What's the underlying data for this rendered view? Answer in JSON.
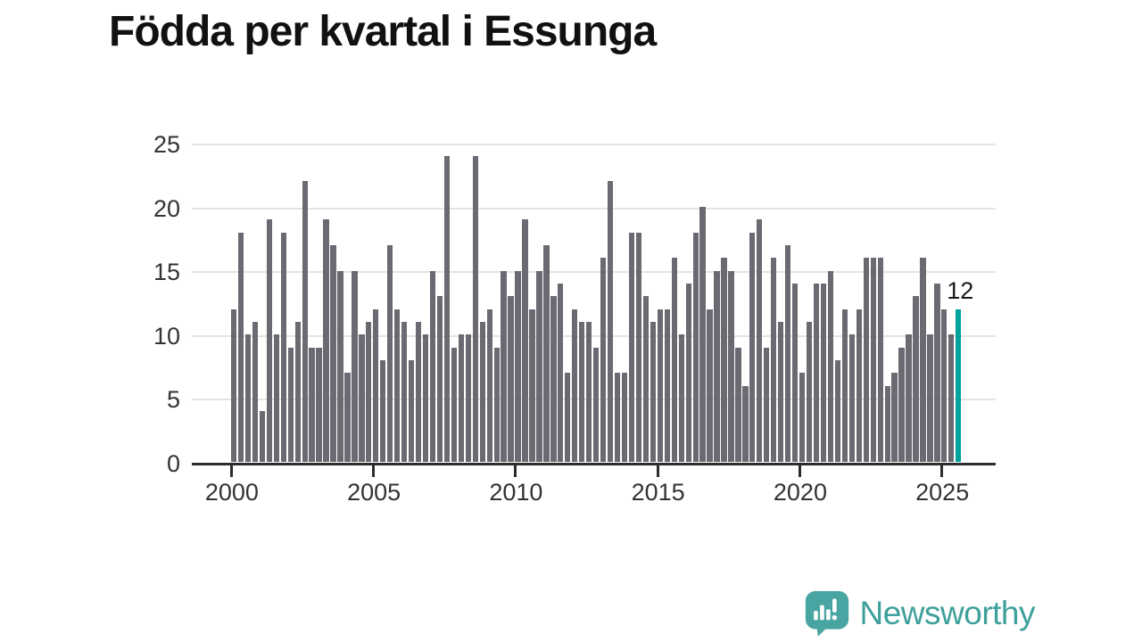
{
  "title": "Födda per kvartal i Essunga",
  "annotation": {
    "last_value_label": "12"
  },
  "branding": {
    "logo_text": "Newsworthy",
    "logo_icon": "speech-bubble-bar-chart-icon"
  },
  "colors": {
    "bar": "#6A6A72",
    "highlight": "#00A29C",
    "grid": "#E4E4E4",
    "axis": "#2D2D2D",
    "tick_label": "#333333",
    "title": "#111111",
    "logo": "#3EA09B"
  },
  "chart_data": {
    "type": "bar",
    "title": "Födda per kvartal i Essunga",
    "x_start": "2000 Q1",
    "x_end": "2025 Q3",
    "x_unit": "quarter",
    "x_tick_labels": [
      "2000",
      "2005",
      "2010",
      "2015",
      "2020",
      "2025"
    ],
    "y_ticks": [
      0,
      5,
      10,
      15,
      20,
      25
    ],
    "ylim": [
      0,
      25
    ],
    "grid": "horizontal",
    "legend": "none",
    "series": [
      {
        "name": "Födda",
        "values": [
          12,
          18,
          10,
          11,
          4,
          19,
          10,
          18,
          9,
          11,
          22,
          9,
          9,
          19,
          17,
          15,
          7,
          15,
          10,
          11,
          12,
          8,
          17,
          12,
          11,
          8,
          11,
          10,
          15,
          13,
          24,
          9,
          10,
          10,
          24,
          11,
          12,
          9,
          15,
          13,
          15,
          19,
          12,
          15,
          17,
          13,
          14,
          7,
          12,
          11,
          11,
          9,
          16,
          22,
          7,
          7,
          18,
          18,
          13,
          11,
          12,
          12,
          16,
          10,
          14,
          18,
          20,
          12,
          15,
          16,
          15,
          9,
          6,
          18,
          19,
          9,
          16,
          11,
          17,
          14,
          7,
          11,
          14,
          14,
          15,
          8,
          12,
          10,
          12,
          16,
          16,
          16,
          6,
          7,
          9,
          10,
          13,
          16,
          10,
          14,
          12,
          10,
          12
        ]
      }
    ],
    "highlight_last": {
      "quarter": "2025 Q3",
      "value": 12,
      "label": "12"
    }
  }
}
